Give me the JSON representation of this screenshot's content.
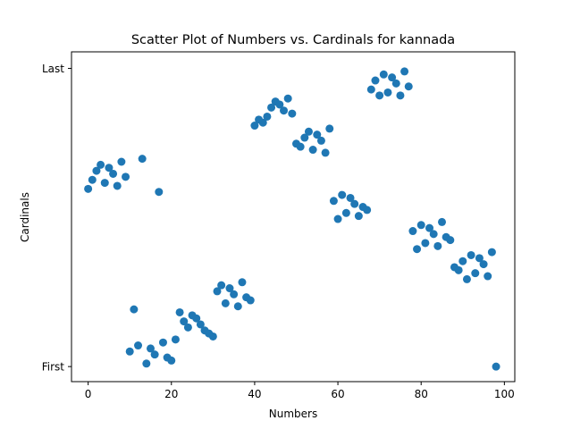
{
  "chart_data": {
    "type": "scatter",
    "title": "Scatter Plot of Numbers vs. Cardinals for kannada",
    "xlabel": "Numbers",
    "ylabel": "Cardinals",
    "xlim": [
      -4,
      102.5
    ],
    "ylim": [
      -5,
      104.5
    ],
    "x_ticks": [
      0,
      20,
      40,
      60,
      80,
      100
    ],
    "y_ticks": [
      {
        "value": 0,
        "label": "First"
      },
      {
        "value": 99,
        "label": "Last"
      }
    ],
    "grid": false,
    "marker_color": "#1f77b4",
    "points": [
      {
        "x": 0,
        "y": 59
      },
      {
        "x": 1,
        "y": 62
      },
      {
        "x": 2,
        "y": 65
      },
      {
        "x": 3,
        "y": 67
      },
      {
        "x": 4,
        "y": 61
      },
      {
        "x": 5,
        "y": 66
      },
      {
        "x": 6,
        "y": 64
      },
      {
        "x": 7,
        "y": 60
      },
      {
        "x": 8,
        "y": 68
      },
      {
        "x": 9,
        "y": 63
      },
      {
        "x": 10,
        "y": 5
      },
      {
        "x": 11,
        "y": 19
      },
      {
        "x": 12,
        "y": 7
      },
      {
        "x": 13,
        "y": 69
      },
      {
        "x": 14,
        "y": 1
      },
      {
        "x": 15,
        "y": 6
      },
      {
        "x": 16,
        "y": 4
      },
      {
        "x": 17,
        "y": 58
      },
      {
        "x": 18,
        "y": 8
      },
      {
        "x": 19,
        "y": 3
      },
      {
        "x": 20,
        "y": 2
      },
      {
        "x": 21,
        "y": 9
      },
      {
        "x": 22,
        "y": 18
      },
      {
        "x": 23,
        "y": 15
      },
      {
        "x": 24,
        "y": 13
      },
      {
        "x": 25,
        "y": 17
      },
      {
        "x": 26,
        "y": 16
      },
      {
        "x": 27,
        "y": 14
      },
      {
        "x": 28,
        "y": 12
      },
      {
        "x": 29,
        "y": 11
      },
      {
        "x": 30,
        "y": 10
      },
      {
        "x": 31,
        "y": 25
      },
      {
        "x": 32,
        "y": 27
      },
      {
        "x": 33,
        "y": 21
      },
      {
        "x": 34,
        "y": 26
      },
      {
        "x": 35,
        "y": 24
      },
      {
        "x": 36,
        "y": 20
      },
      {
        "x": 37,
        "y": 28
      },
      {
        "x": 38,
        "y": 23
      },
      {
        "x": 39,
        "y": 22
      },
      {
        "x": 40,
        "y": 80
      },
      {
        "x": 41,
        "y": 82
      },
      {
        "x": 42,
        "y": 81
      },
      {
        "x": 43,
        "y": 83
      },
      {
        "x": 44,
        "y": 86
      },
      {
        "x": 45,
        "y": 88
      },
      {
        "x": 46,
        "y": 87
      },
      {
        "x": 47,
        "y": 85
      },
      {
        "x": 48,
        "y": 89
      },
      {
        "x": 49,
        "y": 84
      },
      {
        "x": 50,
        "y": 74
      },
      {
        "x": 51,
        "y": 73
      },
      {
        "x": 52,
        "y": 76
      },
      {
        "x": 53,
        "y": 78
      },
      {
        "x": 54,
        "y": 72
      },
      {
        "x": 55,
        "y": 77
      },
      {
        "x": 56,
        "y": 75
      },
      {
        "x": 57,
        "y": 71
      },
      {
        "x": 58,
        "y": 79
      },
      {
        "x": 59,
        "y": 55
      },
      {
        "x": 60,
        "y": 49
      },
      {
        "x": 61,
        "y": 57
      },
      {
        "x": 62,
        "y": 51
      },
      {
        "x": 63,
        "y": 56
      },
      {
        "x": 64,
        "y": 54
      },
      {
        "x": 65,
        "y": 50
      },
      {
        "x": 66,
        "y": 53
      },
      {
        "x": 67,
        "y": 52
      },
      {
        "x": 68,
        "y": 92
      },
      {
        "x": 69,
        "y": 95
      },
      {
        "x": 70,
        "y": 90
      },
      {
        "x": 71,
        "y": 97
      },
      {
        "x": 72,
        "y": 91
      },
      {
        "x": 73,
        "y": 96
      },
      {
        "x": 74,
        "y": 94
      },
      {
        "x": 75,
        "y": 90
      },
      {
        "x": 76,
        "y": 98
      },
      {
        "x": 77,
        "y": 93
      },
      {
        "x": 78,
        "y": 45
      },
      {
        "x": 79,
        "y": 39
      },
      {
        "x": 80,
        "y": 47
      },
      {
        "x": 81,
        "y": 41
      },
      {
        "x": 82,
        "y": 46
      },
      {
        "x": 83,
        "y": 44
      },
      {
        "x": 84,
        "y": 40
      },
      {
        "x": 85,
        "y": 48
      },
      {
        "x": 86,
        "y": 43
      },
      {
        "x": 87,
        "y": 42
      },
      {
        "x": 88,
        "y": 33
      },
      {
        "x": 89,
        "y": 32
      },
      {
        "x": 90,
        "y": 35
      },
      {
        "x": 91,
        "y": 29
      },
      {
        "x": 92,
        "y": 37
      },
      {
        "x": 93,
        "y": 31
      },
      {
        "x": 94,
        "y": 36
      },
      {
        "x": 95,
        "y": 34
      },
      {
        "x": 96,
        "y": 30
      },
      {
        "x": 97,
        "y": 38
      },
      {
        "x": 98,
        "y": 0
      }
    ]
  }
}
